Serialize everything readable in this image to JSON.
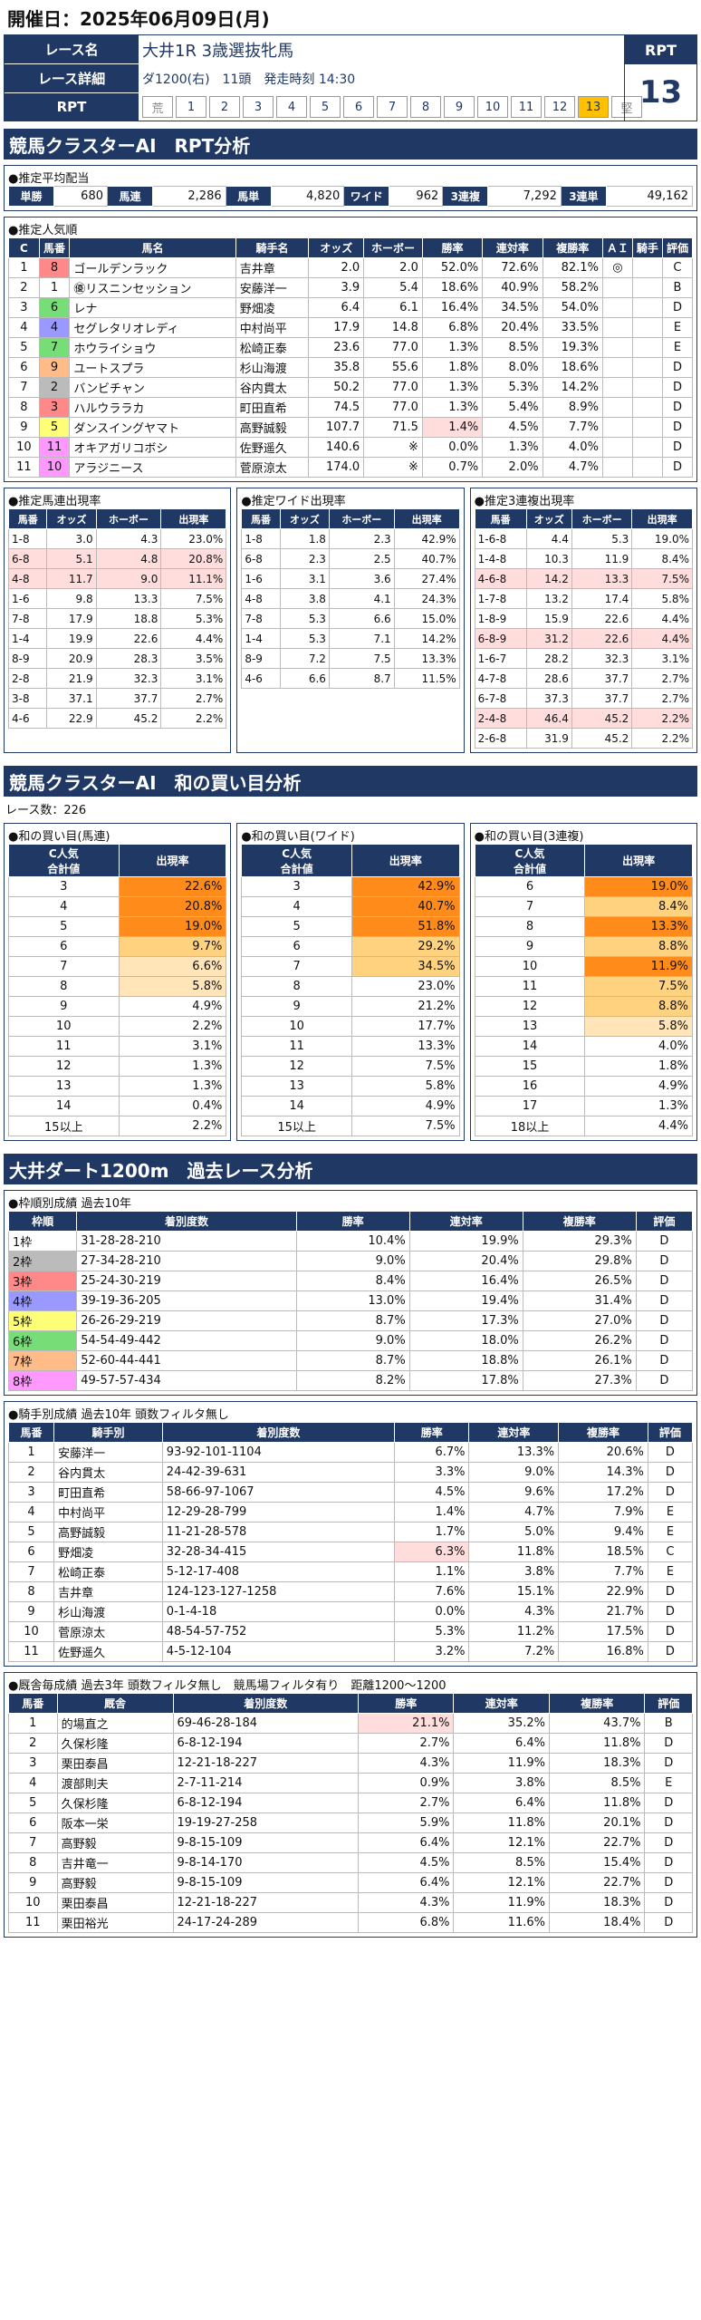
{
  "header": {
    "date": "開催日：2025年06月09日(月)"
  },
  "info": {
    "race_name_label": "レース名",
    "race_name": "大井1R 3歳選抜牝馬",
    "detail_label": "レース詳細",
    "detail": "ダ1200(右)　11頭　発走時刻 14:30",
    "rpt_label": "RPT",
    "rpt_head": "RPT",
    "rpt_value": "13",
    "scale": [
      "荒",
      "1",
      "2",
      "3",
      "4",
      "5",
      "6",
      "7",
      "8",
      "9",
      "10",
      "11",
      "12",
      "13",
      "堅"
    ],
    "scale_highlight": "13"
  },
  "sec1": {
    "title": "競馬クラスターAI　RPT分析"
  },
  "payout": {
    "title": "●推定平均配当",
    "items": [
      {
        "k": "単勝",
        "v": "680"
      },
      {
        "k": "馬連",
        "v": "2,286"
      },
      {
        "k": "馬単",
        "v": "4,820"
      },
      {
        "k": "ワイド",
        "v": "962"
      },
      {
        "k": "3連複",
        "v": "7,292"
      },
      {
        "k": "3連単",
        "v": "49,162"
      }
    ]
  },
  "pop": {
    "title": "●推定人気順",
    "headers": [
      "C",
      "馬番",
      "馬名",
      "騎手名",
      "オッズ",
      "ホーボー",
      "勝率",
      "連対率",
      "複勝率",
      "ＡＩ",
      "騎手",
      "評価"
    ],
    "rows": [
      [
        "1",
        "8",
        "ゴールデンラック",
        "吉井章",
        "2.0",
        "2.0",
        "52.0%",
        "72.6%",
        "82.1%",
        "◎",
        "",
        "C"
      ],
      [
        "2",
        "1",
        "㊝リスニンセッション",
        "安藤洋一",
        "3.9",
        "5.4",
        "18.6%",
        "40.9%",
        "58.2%",
        "",
        "",
        "B"
      ],
      [
        "3",
        "6",
        "レナ",
        "野畑凌",
        "6.4",
        "6.1",
        "16.4%",
        "34.5%",
        "54.0%",
        "",
        "",
        "D"
      ],
      [
        "4",
        "4",
        "セグレタリオレディ",
        "中村尚平",
        "17.9",
        "14.8",
        "6.8%",
        "20.4%",
        "33.5%",
        "",
        "",
        "E"
      ],
      [
        "5",
        "7",
        "ホウライショウ",
        "松崎正泰",
        "23.6",
        "77.0",
        "1.3%",
        "8.5%",
        "19.3%",
        "",
        "",
        "E"
      ],
      [
        "6",
        "9",
        "ユートスプラ",
        "杉山海渡",
        "35.8",
        "55.6",
        "1.8%",
        "8.0%",
        "18.6%",
        "",
        "",
        "D"
      ],
      [
        "7",
        "2",
        "バンビチャン",
        "谷内貫太",
        "50.2",
        "77.0",
        "1.3%",
        "5.3%",
        "14.2%",
        "",
        "",
        "D"
      ],
      [
        "8",
        "3",
        "ハルウララカ",
        "町田直希",
        "74.5",
        "77.0",
        "1.3%",
        "5.4%",
        "8.9%",
        "",
        "",
        "D"
      ],
      [
        "9",
        "5",
        "ダンスイングヤマト",
        "高野誠毅",
        "107.7",
        "71.5",
        "1.4%",
        "4.5%",
        "7.7%",
        "",
        "",
        "D"
      ],
      [
        "10",
        "11",
        "オキアガリコボシ",
        "佐野遥久",
        "140.6",
        "※",
        "0.0%",
        "1.3%",
        "4.0%",
        "",
        "",
        "D"
      ],
      [
        "11",
        "10",
        "アラジニース",
        "菅原涼太",
        "174.0",
        "※",
        "0.7%",
        "2.0%",
        "4.7%",
        "",
        "",
        "D"
      ]
    ]
  },
  "umaren": {
    "title": "●推定馬連出現率",
    "headers": [
      "馬番",
      "オッズ",
      "ホーボー",
      "出現率"
    ],
    "rows": [
      [
        "1-8",
        "3.0",
        "4.3",
        "23.0%"
      ],
      [
        "6-8",
        "5.1",
        "4.8",
        "20.8%"
      ],
      [
        "4-8",
        "11.7",
        "9.0",
        "11.1%"
      ],
      [
        "1-6",
        "9.8",
        "13.3",
        "7.5%"
      ],
      [
        "7-8",
        "17.9",
        "18.8",
        "5.3%"
      ],
      [
        "1-4",
        "19.9",
        "22.6",
        "4.4%"
      ],
      [
        "8-9",
        "20.9",
        "28.3",
        "3.5%"
      ],
      [
        "2-8",
        "21.9",
        "32.3",
        "3.1%"
      ],
      [
        "3-8",
        "37.1",
        "37.7",
        "2.7%"
      ],
      [
        "4-6",
        "22.9",
        "45.2",
        "2.2%"
      ]
    ]
  },
  "wide": {
    "title": "●推定ワイド出現率",
    "headers": [
      "馬番",
      "オッズ",
      "ホーボー",
      "出現率"
    ],
    "rows": [
      [
        "1-8",
        "1.8",
        "2.3",
        "42.9%"
      ],
      [
        "6-8",
        "2.3",
        "2.5",
        "40.7%"
      ],
      [
        "1-6",
        "3.1",
        "3.6",
        "27.4%"
      ],
      [
        "4-8",
        "3.8",
        "4.1",
        "24.3%"
      ],
      [
        "7-8",
        "5.3",
        "6.6",
        "15.0%"
      ],
      [
        "1-4",
        "5.3",
        "7.1",
        "14.2%"
      ],
      [
        "8-9",
        "7.2",
        "7.5",
        "13.3%"
      ],
      [
        "4-6",
        "6.6",
        "8.7",
        "11.5%"
      ]
    ]
  },
  "sanren": {
    "title": "●推定3連複出現率",
    "headers": [
      "馬番",
      "オッズ",
      "ホーボー",
      "出現率"
    ],
    "rows": [
      [
        "1-6-8",
        "4.4",
        "5.3",
        "19.0%"
      ],
      [
        "1-4-8",
        "10.3",
        "11.9",
        "8.4%"
      ],
      [
        "4-6-8",
        "14.2",
        "13.3",
        "7.5%"
      ],
      [
        "1-7-8",
        "13.2",
        "17.4",
        "5.8%"
      ],
      [
        "1-8-9",
        "15.9",
        "22.6",
        "4.4%"
      ],
      [
        "6-8-9",
        "31.2",
        "22.6",
        "4.4%"
      ],
      [
        "1-6-7",
        "28.2",
        "32.3",
        "3.1%"
      ],
      [
        "4-7-8",
        "28.6",
        "37.7",
        "2.7%"
      ],
      [
        "6-7-8",
        "37.3",
        "37.7",
        "2.7%"
      ],
      [
        "2-4-8",
        "46.4",
        "45.2",
        "2.2%"
      ],
      [
        "2-6-8",
        "31.9",
        "45.2",
        "2.2%"
      ]
    ]
  },
  "sec2": {
    "title": "競馬クラスターAI　和の買い目分析",
    "race_count": "レース数：226"
  },
  "sum1": {
    "title": "●和の買い目(馬連)",
    "h1": "C人気\n合計値",
    "h2": "出現率",
    "rows": [
      [
        "3",
        "22.6%"
      ],
      [
        "4",
        "20.8%"
      ],
      [
        "5",
        "19.0%"
      ],
      [
        "6",
        "9.7%"
      ],
      [
        "7",
        "6.6%"
      ],
      [
        "8",
        "5.8%"
      ],
      [
        "9",
        "4.9%"
      ],
      [
        "10",
        "2.2%"
      ],
      [
        "11",
        "3.1%"
      ],
      [
        "12",
        "1.3%"
      ],
      [
        "13",
        "1.3%"
      ],
      [
        "14",
        "0.4%"
      ],
      [
        "15以上",
        "2.2%"
      ]
    ]
  },
  "sum2": {
    "title": "●和の買い目(ワイド)",
    "h1": "C人気\n合計値",
    "h2": "出現率",
    "rows": [
      [
        "3",
        "42.9%"
      ],
      [
        "4",
        "40.7%"
      ],
      [
        "5",
        "51.8%"
      ],
      [
        "6",
        "29.2%"
      ],
      [
        "7",
        "34.5%"
      ],
      [
        "8",
        "23.0%"
      ],
      [
        "9",
        "21.2%"
      ],
      [
        "10",
        "17.7%"
      ],
      [
        "11",
        "13.3%"
      ],
      [
        "12",
        "7.5%"
      ],
      [
        "13",
        "5.8%"
      ],
      [
        "14",
        "4.9%"
      ],
      [
        "15以上",
        "7.5%"
      ]
    ]
  },
  "sum3": {
    "title": "●和の買い目(3連複)",
    "h1": "C人気\n合計値",
    "h2": "出現率",
    "rows": [
      [
        "6",
        "19.0%"
      ],
      [
        "7",
        "8.4%"
      ],
      [
        "8",
        "13.3%"
      ],
      [
        "9",
        "8.8%"
      ],
      [
        "10",
        "11.9%"
      ],
      [
        "11",
        "7.5%"
      ],
      [
        "12",
        "8.8%"
      ],
      [
        "13",
        "5.8%"
      ],
      [
        "14",
        "4.0%"
      ],
      [
        "15",
        "1.8%"
      ],
      [
        "16",
        "4.9%"
      ],
      [
        "17",
        "1.3%"
      ],
      [
        "18以上",
        "4.4%"
      ]
    ]
  },
  "sec3": {
    "title": "大井ダート1200m　過去レース分析"
  },
  "waku": {
    "title": "●枠順別成績 過去10年",
    "headers": [
      "枠順",
      "着別度数",
      "勝率",
      "連対率",
      "複勝率",
      "評価"
    ],
    "rows": [
      [
        "1枠",
        "31-28-28-210",
        "10.4%",
        "19.9%",
        "29.3%",
        "D"
      ],
      [
        "2枠",
        "27-34-28-210",
        "9.0%",
        "20.4%",
        "29.8%",
        "D"
      ],
      [
        "3枠",
        "25-24-30-219",
        "8.4%",
        "16.4%",
        "26.5%",
        "D"
      ],
      [
        "4枠",
        "39-19-36-205",
        "13.0%",
        "19.4%",
        "31.4%",
        "D"
      ],
      [
        "5枠",
        "26-26-29-219",
        "8.7%",
        "17.3%",
        "27.0%",
        "D"
      ],
      [
        "6枠",
        "54-54-49-442",
        "9.0%",
        "18.0%",
        "26.2%",
        "D"
      ],
      [
        "7枠",
        "52-60-44-441",
        "8.7%",
        "18.8%",
        "26.1%",
        "D"
      ],
      [
        "8枠",
        "49-57-57-434",
        "8.2%",
        "17.8%",
        "27.3%",
        "D"
      ]
    ]
  },
  "jockey": {
    "title": "●騎手別成績 過去10年 頭数フィルタ無し",
    "headers": [
      "馬番",
      "騎手別",
      "着別度数",
      "勝率",
      "連対率",
      "複勝率",
      "評価"
    ],
    "rows": [
      [
        "1",
        "安藤洋一",
        "93-92-101-1104",
        "6.7%",
        "13.3%",
        "20.6%",
        "D"
      ],
      [
        "2",
        "谷内貫太",
        "24-42-39-631",
        "3.3%",
        "9.0%",
        "14.3%",
        "D"
      ],
      [
        "3",
        "町田直希",
        "58-66-97-1067",
        "4.5%",
        "9.6%",
        "17.2%",
        "D"
      ],
      [
        "4",
        "中村尚平",
        "12-29-28-799",
        "1.4%",
        "4.7%",
        "7.9%",
        "E"
      ],
      [
        "5",
        "高野誠毅",
        "11-21-28-578",
        "1.7%",
        "5.0%",
        "9.4%",
        "E"
      ],
      [
        "6",
        "野畑凌",
        "32-28-34-415",
        "6.3%",
        "11.8%",
        "18.5%",
        "C"
      ],
      [
        "7",
        "松崎正泰",
        "5-12-17-408",
        "1.1%",
        "3.8%",
        "7.7%",
        "E"
      ],
      [
        "8",
        "吉井章",
        "124-123-127-1258",
        "7.6%",
        "15.1%",
        "22.9%",
        "D"
      ],
      [
        "9",
        "杉山海渡",
        "0-1-4-18",
        "0.0%",
        "4.3%",
        "21.7%",
        "D"
      ],
      [
        "10",
        "菅原涼太",
        "48-54-57-752",
        "5.3%",
        "11.2%",
        "17.5%",
        "D"
      ],
      [
        "11",
        "佐野遥久",
        "4-5-12-104",
        "3.2%",
        "7.2%",
        "16.8%",
        "D"
      ]
    ]
  },
  "stable": {
    "title": "●厩舎毎成績 過去3年 頭数フィルタ無し　競馬場フィルタ有り　距離1200〜1200",
    "headers": [
      "馬番",
      "厩舎",
      "着別度数",
      "勝率",
      "連対率",
      "複勝率",
      "評価"
    ],
    "rows": [
      [
        "1",
        "的場直之",
        "69-46-28-184",
        "21.1%",
        "35.2%",
        "43.7%",
        "B"
      ],
      [
        "2",
        "久保杉隆",
        "6-8-12-194",
        "2.7%",
        "6.4%",
        "11.8%",
        "D"
      ],
      [
        "3",
        "栗田泰昌",
        "12-21-18-227",
        "4.3%",
        "11.9%",
        "18.3%",
        "D"
      ],
      [
        "4",
        "渡部則夫",
        "2-7-11-214",
        "0.9%",
        "3.8%",
        "8.5%",
        "E"
      ],
      [
        "5",
        "久保杉隆",
        "6-8-12-194",
        "2.7%",
        "6.4%",
        "11.8%",
        "D"
      ],
      [
        "6",
        "阪本一栄",
        "19-19-27-258",
        "5.9%",
        "11.8%",
        "20.1%",
        "D"
      ],
      [
        "7",
        "高野毅",
        "9-8-15-109",
        "6.4%",
        "12.1%",
        "22.7%",
        "D"
      ],
      [
        "8",
        "吉井竜一",
        "9-8-14-170",
        "4.5%",
        "8.5%",
        "15.4%",
        "D"
      ],
      [
        "9",
        "高野毅",
        "9-8-15-109",
        "6.4%",
        "12.1%",
        "22.7%",
        "D"
      ],
      [
        "10",
        "栗田泰昌",
        "12-21-18-227",
        "4.3%",
        "11.9%",
        "18.3%",
        "D"
      ],
      [
        "11",
        "栗田裕光",
        "24-17-24-289",
        "6.8%",
        "11.6%",
        "18.4%",
        "D"
      ]
    ]
  }
}
